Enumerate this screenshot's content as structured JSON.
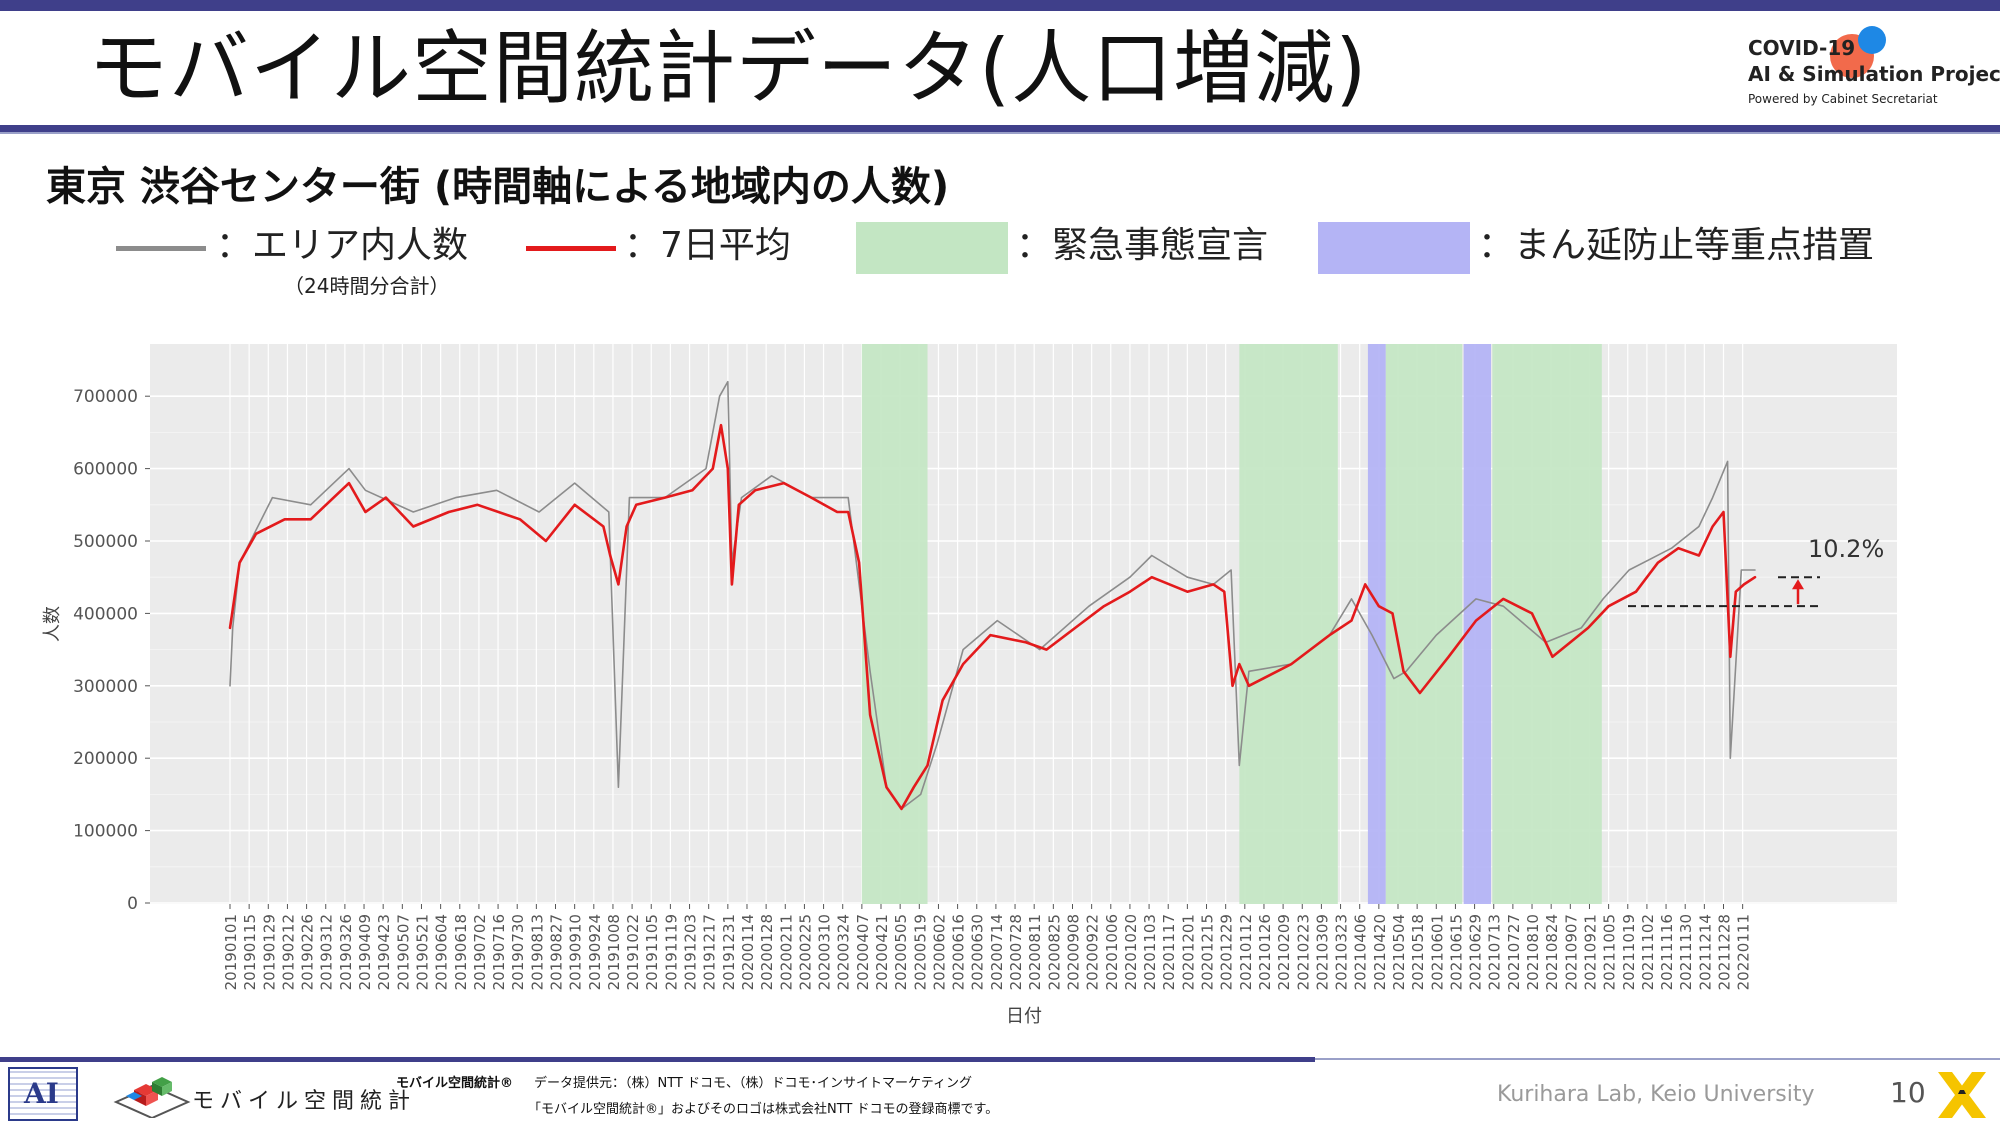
{
  "header": {
    "title": "モバイル空間統計データ(人口増減)",
    "project_line1": "COVID-19",
    "project_line2": "AI & Simulation Project",
    "project_line3": "Powered by Cabinet Secretariat"
  },
  "subtitle": "東京 渋谷センター街 (時間軸による地域内の人数)",
  "legend": {
    "area_label": "：エリア内人数",
    "area_note": "（24時間分合計）",
    "avg_label": "：7日平均",
    "emergency_label": "：緊急事態宣言",
    "manen_label": "：まん延防止等重点措置",
    "colors": {
      "area": "#8c8c8c",
      "avg": "#e31a1c",
      "emergency": "#c3e6c3",
      "manen": "#b4b4f5"
    }
  },
  "chart_data": {
    "type": "line",
    "xlabel": "日付",
    "ylabel": "人数",
    "ylim": [
      0,
      750000
    ],
    "yticks": [
      0,
      100000,
      200000,
      300000,
      400000,
      500000,
      600000,
      700000
    ],
    "ytick_labels": [
      "0",
      "100000",
      "200000",
      "300000",
      "400000",
      "500000",
      "600000",
      "700000"
    ],
    "x_start": "2019-01-01",
    "x_end": "2022-01-31",
    "xtick_labels": [
      "20190101",
      "20190115",
      "20190129",
      "20190212",
      "20190226",
      "20190312",
      "20190326",
      "20190409",
      "20190423",
      "20190507",
      "20190521",
      "20190604",
      "20190618",
      "20190702",
      "20190716",
      "20190730",
      "20190813",
      "20190827",
      "20190910",
      "20190924",
      "20191008",
      "20191022",
      "20191105",
      "20191119",
      "20191203",
      "20191217",
      "20191231",
      "20200114",
      "20200128",
      "20200211",
      "20200225",
      "20200310",
      "20200324",
      "20200407",
      "20200421",
      "20200505",
      "20200519",
      "20200602",
      "20200616",
      "20200630",
      "20200714",
      "20200728",
      "20200811",
      "20200825",
      "20200908",
      "20200922",
      "20201006",
      "20201020",
      "20201103",
      "20201117",
      "20201201",
      "20201215",
      "20201229",
      "20210112",
      "20210126",
      "20210209",
      "20210223",
      "20210309",
      "20210323",
      "20210406",
      "20210420",
      "20210504",
      "20210518",
      "20210601",
      "20210615",
      "20210629",
      "20210713",
      "20210727",
      "20210810",
      "20210824",
      "20210907",
      "20210921",
      "20211005",
      "20211019",
      "20211102",
      "20211116",
      "20211130",
      "20211214",
      "20211228",
      "20220111"
    ],
    "emergency_periods": [
      [
        "2020-04-07",
        "2020-05-25"
      ],
      [
        "2021-01-08",
        "2021-03-21"
      ],
      [
        "2021-04-25",
        "2021-06-20"
      ],
      [
        "2021-07-12",
        "2021-09-30"
      ]
    ],
    "manen_periods": [
      [
        "2021-04-12",
        "2021-04-25"
      ],
      [
        "2021-06-21",
        "2021-07-11"
      ]
    ],
    "series": [
      {
        "name": "エリア内人数",
        "x": [
          "2019-01-01",
          "2019-01-03",
          "2019-01-08",
          "2019-02-01",
          "2019-03-01",
          "2019-03-29",
          "2019-04-10",
          "2019-05-15",
          "2019-06-15",
          "2019-07-15",
          "2019-08-15",
          "2019-09-10",
          "2019-10-05",
          "2019-10-12",
          "2019-10-20",
          "2019-11-15",
          "2019-12-15",
          "2019-12-25",
          "2019-12-31",
          "2020-01-03",
          "2020-01-10",
          "2020-02-01",
          "2020-03-01",
          "2020-03-28",
          "2020-04-05",
          "2020-04-13",
          "2020-04-25",
          "2020-05-06",
          "2020-05-20",
          "2020-06-01",
          "2020-06-20",
          "2020-07-15",
          "2020-08-15",
          "2020-09-20",
          "2020-10-20",
          "2020-11-05",
          "2020-12-01",
          "2020-12-20",
          "2021-01-02",
          "2021-01-08",
          "2021-01-15",
          "2021-02-15",
          "2021-03-15",
          "2021-03-31",
          "2021-04-15",
          "2021-05-01",
          "2021-05-10",
          "2021-06-01",
          "2021-06-30",
          "2021-07-20",
          "2021-08-20",
          "2021-09-15",
          "2021-10-01",
          "2021-10-20",
          "2021-11-20",
          "2021-12-10",
          "2021-12-20",
          "2021-12-31",
          "2022-01-02",
          "2022-01-10",
          "2022-01-20"
        ],
        "values": [
          300000,
          380000,
          470000,
          560000,
          550000,
          600000,
          570000,
          540000,
          560000,
          570000,
          540000,
          580000,
          540000,
          160000,
          560000,
          560000,
          600000,
          700000,
          720000,
          470000,
          560000,
          590000,
          560000,
          560000,
          440000,
          320000,
          160000,
          130000,
          150000,
          220000,
          350000,
          390000,
          350000,
          410000,
          450000,
          480000,
          450000,
          440000,
          460000,
          190000,
          320000,
          330000,
          370000,
          420000,
          370000,
          310000,
          320000,
          370000,
          420000,
          410000,
          360000,
          380000,
          420000,
          460000,
          490000,
          520000,
          560000,
          610000,
          200000,
          460000,
          460000
        ]
      },
      {
        "name": "7日平均",
        "x": [
          "2019-01-01",
          "2019-01-08",
          "2019-01-20",
          "2019-02-10",
          "2019-03-01",
          "2019-03-29",
          "2019-04-10",
          "2019-04-25",
          "2019-05-15",
          "2019-06-10",
          "2019-07-01",
          "2019-08-01",
          "2019-08-20",
          "2019-09-10",
          "2019-10-01",
          "2019-10-06",
          "2019-10-12",
          "2019-10-18",
          "2019-10-25",
          "2019-11-15",
          "2019-12-05",
          "2019-12-20",
          "2019-12-26",
          "2019-12-31",
          "2020-01-03",
          "2020-01-08",
          "2020-01-20",
          "2020-02-10",
          "2020-03-01",
          "2020-03-20",
          "2020-03-28",
          "2020-04-05",
          "2020-04-13",
          "2020-04-25",
          "2020-05-06",
          "2020-05-15",
          "2020-05-25",
          "2020-06-05",
          "2020-06-20",
          "2020-07-10",
          "2020-08-05",
          "2020-08-20",
          "2020-09-10",
          "2020-10-01",
          "2020-10-20",
          "2020-11-05",
          "2020-12-01",
          "2020-12-20",
          "2020-12-28",
          "2021-01-03",
          "2021-01-08",
          "2021-01-15",
          "2021-02-15",
          "2021-03-15",
          "2021-03-31",
          "2021-04-10",
          "2021-04-20",
          "2021-04-30",
          "2021-05-08",
          "2021-05-20",
          "2021-06-10",
          "2021-06-30",
          "2021-07-20",
          "2021-08-10",
          "2021-08-25",
          "2021-09-20",
          "2021-10-05",
          "2021-10-25",
          "2021-11-10",
          "2021-11-25",
          "2021-12-10",
          "2021-12-20",
          "2021-12-28",
          "2022-01-02",
          "2022-01-06",
          "2022-01-12",
          "2022-01-20"
        ],
        "values": [
          380000,
          470000,
          510000,
          530000,
          530000,
          580000,
          540000,
          560000,
          520000,
          540000,
          550000,
          530000,
          500000,
          550000,
          520000,
          480000,
          440000,
          520000,
          550000,
          560000,
          570000,
          600000,
          660000,
          600000,
          440000,
          550000,
          570000,
          580000,
          560000,
          540000,
          540000,
          470000,
          260000,
          160000,
          130000,
          160000,
          190000,
          280000,
          330000,
          370000,
          360000,
          350000,
          380000,
          410000,
          430000,
          450000,
          430000,
          440000,
          430000,
          300000,
          330000,
          300000,
          330000,
          370000,
          390000,
          440000,
          410000,
          400000,
          320000,
          290000,
          340000,
          390000,
          420000,
          400000,
          340000,
          380000,
          410000,
          430000,
          470000,
          490000,
          480000,
          520000,
          540000,
          340000,
          430000,
          440000,
          450000
        ]
      }
    ],
    "annotation": {
      "text": "10.2%",
      "baseline": 410000,
      "level": 450000
    }
  },
  "footer": {
    "logo_text": "AI",
    "mobile_logo_text": "モバイル空間統計",
    "brand": "モバイル空間統計®",
    "provider": "データ提供元：（株）NTT ドコモ、（株）ドコモ･インサイトマーケティング",
    "trademark": "「モバイル空間統計®」およびそのロゴは株式会社NTT ドコモの登録商標です。",
    "lab": "Kurihara Lab, Keio University",
    "page": "10"
  }
}
